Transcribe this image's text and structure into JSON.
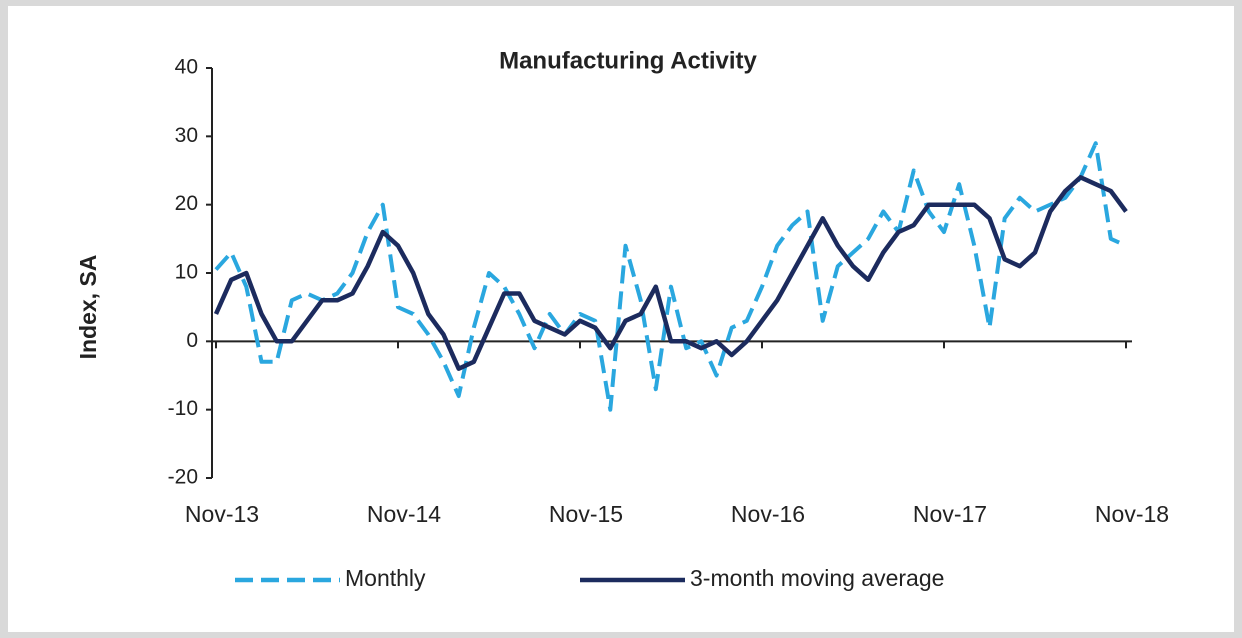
{
  "chart_data": {
    "type": "line",
    "title": "Manufacturing Activity",
    "y_label": "Index, SA",
    "categories": [
      "Nov-13",
      null,
      null,
      null,
      null,
      null,
      null,
      null,
      null,
      null,
      null,
      null,
      "Nov-14",
      null,
      null,
      null,
      null,
      null,
      null,
      null,
      null,
      null,
      null,
      null,
      "Nov-15",
      null,
      null,
      null,
      null,
      null,
      null,
      null,
      null,
      null,
      null,
      null,
      "Nov-16",
      null,
      null,
      null,
      null,
      null,
      null,
      null,
      null,
      null,
      null,
      null,
      "Nov-17",
      null,
      null,
      null,
      null,
      null,
      null,
      null,
      null,
      null,
      null,
      null,
      "Nov-18"
    ],
    "series": [
      {
        "name": "Monthly",
        "color": "#2aa7df",
        "dashed": true,
        "values": [
          10.5,
          13,
          8,
          -3,
          -3,
          6,
          7,
          6,
          7,
          10,
          16,
          20,
          5,
          4,
          1,
          -3,
          -8,
          2,
          10,
          8,
          4,
          -1,
          4,
          1,
          4,
          3,
          -10,
          14,
          6,
          -7,
          8,
          -1,
          0,
          -5,
          2,
          3,
          8,
          14,
          17,
          19,
          3,
          11,
          13,
          15,
          19,
          16,
          25,
          19,
          16,
          23,
          14,
          2,
          18,
          21,
          19,
          20,
          21,
          24,
          29,
          15,
          14
        ]
      },
      {
        "name": "3-month moving average",
        "color": "#1c2b5e",
        "dashed": false,
        "values": [
          4,
          9,
          10,
          4,
          0,
          0,
          3,
          6,
          6,
          7,
          11,
          16,
          14,
          10,
          4,
          1,
          -4,
          -3,
          2,
          7,
          7,
          3,
          2,
          1,
          3,
          2,
          -1,
          3,
          4,
          8,
          0,
          0,
          -1,
          0,
          -2,
          0,
          3,
          6,
          10,
          14,
          18,
          14,
          11,
          9,
          13,
          16,
          17,
          20,
          20,
          20,
          20,
          18,
          12,
          11,
          13,
          19,
          22,
          24,
          23,
          22,
          19
        ]
      }
    ],
    "ylim": [
      -20,
      40
    ],
    "yticks": [
      -20,
      -10,
      0,
      10,
      20,
      30,
      40
    ],
    "grid": false,
    "legend": "bottom"
  }
}
